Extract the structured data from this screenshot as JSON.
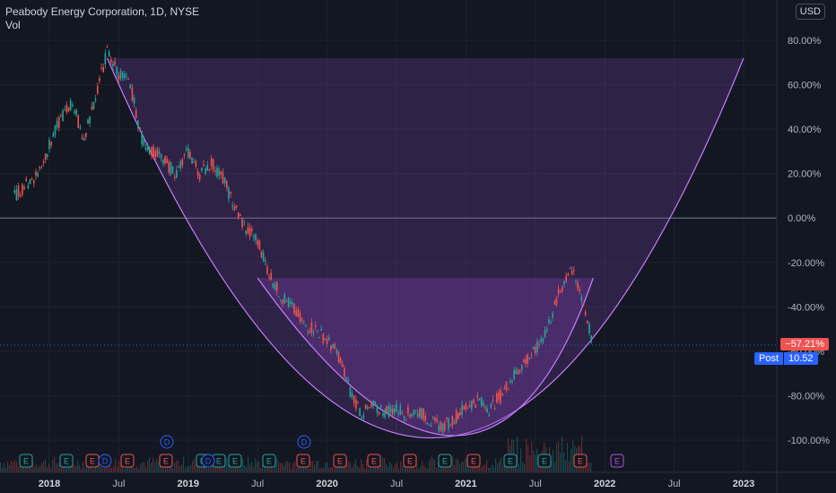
{
  "legend": {
    "title": "Peabody Energy Corporation, 1D, NYSE",
    "sub": "Vol"
  },
  "currency": "USD",
  "colors": {
    "up": "#26a69a",
    "down": "#ef5350",
    "cup_fill": "#7b3fa8",
    "cup_stroke": "#c77dff",
    "zero_line": "#787b86",
    "price_line": "#2962ff",
    "bg": "#131722",
    "grid": "#1e222d"
  },
  "y_axis": {
    "ticks": [
      "80.00%",
      "60.00%",
      "40.00%",
      "20.00%",
      "0.00%",
      "-20.00%",
      "-40.00%",
      "-60.00%",
      "-80.00%",
      "-100.00%"
    ],
    "values": [
      80,
      60,
      40,
      20,
      0,
      -20,
      -40,
      -60,
      -80,
      -100
    ]
  },
  "x_axis": {
    "ticks": [
      {
        "label": "2018",
        "year": true
      },
      {
        "label": "Jul",
        "year": false
      },
      {
        "label": "2019",
        "year": true
      },
      {
        "label": "Jul",
        "year": false
      },
      {
        "label": "2020",
        "year": true
      },
      {
        "label": "Jul",
        "year": false
      },
      {
        "label": "2021",
        "year": true
      },
      {
        "label": "Jul",
        "year": false
      },
      {
        "label": "2022",
        "year": true
      },
      {
        "label": "Jul",
        "year": false
      },
      {
        "label": "2023",
        "year": true
      }
    ]
  },
  "last_value_tag": "−57.21%",
  "post_tag": {
    "label": "Post",
    "value": "10.52"
  },
  "events": {
    "earnings_label": "E",
    "dividend_label": "D"
  },
  "chart_data": {
    "type": "line",
    "title": "Peabody Energy Corporation, 1D, NYSE",
    "ylabel": "",
    "xlabel": "",
    "y_unit": "%",
    "ylim": [
      -110,
      85
    ],
    "x_range": [
      "2017-10",
      "2023-02"
    ],
    "series": [
      {
        "points": [
          [
            "2017-10",
            10
          ],
          [
            "2017-12",
            20
          ],
          [
            "2018-02",
            45
          ],
          [
            "2018-03",
            52
          ],
          [
            "2018-04",
            35
          ],
          [
            "2018-05",
            55
          ],
          [
            "2018-06",
            75
          ],
          [
            "2018-07",
            65
          ],
          [
            "2018-08",
            60
          ],
          [
            "2018-09",
            35
          ],
          [
            "2018-10",
            30
          ],
          [
            "2018-11",
            25
          ],
          [
            "2018-12",
            20
          ],
          [
            "2019-01",
            30
          ],
          [
            "2019-02",
            20
          ],
          [
            "2019-03",
            25
          ],
          [
            "2019-04",
            18
          ],
          [
            "2019-05",
            5
          ],
          [
            "2019-06",
            -5
          ],
          [
            "2019-07",
            -10
          ],
          [
            "2019-08",
            -25
          ],
          [
            "2019-09",
            -35
          ],
          [
            "2019-10",
            -40
          ],
          [
            "2019-11",
            -48
          ],
          [
            "2019-12",
            -50
          ],
          [
            "2020-01",
            -55
          ],
          [
            "2020-02",
            -62
          ],
          [
            "2020-03",
            -78
          ],
          [
            "2020-04",
            -88
          ],
          [
            "2020-05",
            -85
          ],
          [
            "2020-06",
            -87
          ],
          [
            "2020-07",
            -86
          ],
          [
            "2020-08",
            -88
          ],
          [
            "2020-09",
            -87
          ],
          [
            "2020-10",
            -92
          ],
          [
            "2020-11",
            -94
          ],
          [
            "2020-12",
            -90
          ],
          [
            "2021-01",
            -85
          ],
          [
            "2021-02",
            -82
          ],
          [
            "2021-03",
            -86
          ],
          [
            "2021-04",
            -80
          ],
          [
            "2021-05",
            -72
          ],
          [
            "2021-06",
            -65
          ],
          [
            "2021-07",
            -60
          ],
          [
            "2021-08",
            -50
          ],
          [
            "2021-09",
            -35
          ],
          [
            "2021-10",
            -22
          ],
          [
            "2021-11",
            -35
          ],
          [
            "2021-12",
            -57.21
          ]
        ]
      }
    ],
    "cup_pattern": {
      "rim_left": [
        "2018-06",
        72
      ],
      "rim_right": [
        "2023-01",
        72
      ],
      "bottom": [
        "2020-10",
        -99
      ]
    },
    "handle_pattern": {
      "rim_left": [
        "2019-07",
        -27
      ],
      "rim_right": [
        "2021-12",
        -27
      ],
      "bottom": [
        "2020-12",
        -98
      ]
    }
  }
}
